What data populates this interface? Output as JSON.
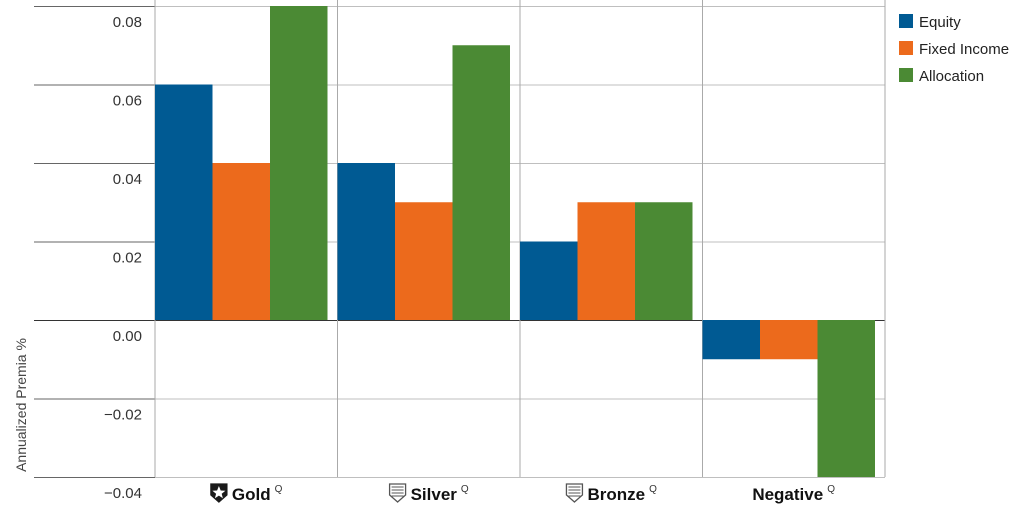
{
  "chart_data": {
    "type": "bar",
    "ylabel": "Annualized Premia %",
    "ylim": [
      -0.04,
      0.08
    ],
    "yticks": [
      "0.08",
      "0.06",
      "0.04",
      "0.02",
      "0.00",
      "−0.02",
      "−0.04"
    ],
    "grid": true,
    "legend_position": "top-right",
    "categories": [
      {
        "label": "Gold",
        "suffix": "Q",
        "icon": "gold-medalist-icon"
      },
      {
        "label": "Silver",
        "suffix": "Q",
        "icon": "silver-medalist-icon"
      },
      {
        "label": "Bronze",
        "suffix": "Q",
        "icon": "bronze-medalist-icon"
      },
      {
        "label": "Negative",
        "suffix": "Q",
        "icon": ""
      }
    ],
    "series": [
      {
        "name": "Equity",
        "color": "#005a93",
        "values": [
          0.06,
          0.04,
          0.02,
          -0.01
        ]
      },
      {
        "name": "Fixed Income",
        "color": "#ec6a1c",
        "values": [
          0.04,
          0.03,
          0.03,
          -0.01
        ]
      },
      {
        "name": "Allocation",
        "color": "#4b8a34",
        "values": [
          0.08,
          0.07,
          0.03,
          -0.04
        ]
      }
    ],
    "colors": {
      "grid": "#bfbfbf",
      "axis": "#555555"
    }
  }
}
